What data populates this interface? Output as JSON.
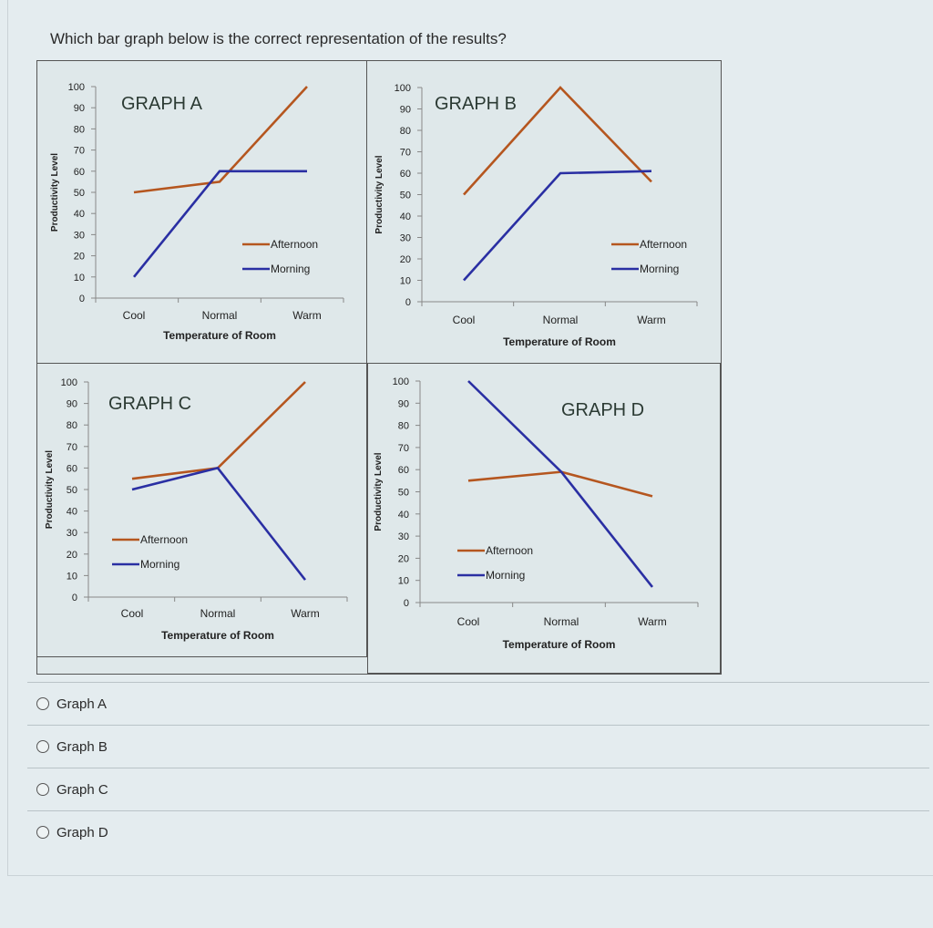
{
  "question": "Which bar graph below is the correct representation of the results?",
  "options": [
    {
      "label": "Graph A"
    },
    {
      "label": "Graph B"
    },
    {
      "label": "Graph C"
    },
    {
      "label": "Graph D"
    }
  ],
  "colors": {
    "afternoon": "#b5561f",
    "morning": "#2a2fa3"
  },
  "chart_data": [
    {
      "type": "line",
      "title": "GRAPH A",
      "categories": [
        "Cool",
        "Normal",
        "Warm"
      ],
      "series": [
        {
          "name": "Afternoon",
          "values": [
            50,
            55,
            100
          ]
        },
        {
          "name": "Morning",
          "values": [
            10,
            60,
            60
          ]
        }
      ],
      "xlabel": "Temperature of Room",
      "ylabel": "Productivity Level",
      "yticks": [
        0,
        10,
        20,
        30,
        40,
        50,
        60,
        70,
        80,
        90,
        100
      ],
      "ylim": [
        0,
        100
      ],
      "grid": false,
      "legend_position": "right"
    },
    {
      "type": "line",
      "title": "GRAPH B",
      "categories": [
        "Cool",
        "Normal",
        "Warm"
      ],
      "series": [
        {
          "name": "Afternoon",
          "values": [
            50,
            100,
            56
          ]
        },
        {
          "name": "Morning",
          "values": [
            10,
            60,
            61
          ]
        }
      ],
      "xlabel": "Temperature of Room",
      "ylabel": "Productivity Level",
      "yticks": [
        0,
        10,
        20,
        30,
        40,
        50,
        60,
        70,
        80,
        90,
        100
      ],
      "ylim": [
        0,
        100
      ],
      "grid": false,
      "legend_position": "right"
    },
    {
      "type": "line",
      "title": "GRAPH C",
      "categories": [
        "Cool",
        "Normal",
        "Warm"
      ],
      "series": [
        {
          "name": "Afternoon",
          "values": [
            55,
            60,
            100
          ]
        },
        {
          "name": "Morning",
          "values": [
            50,
            60,
            8
          ]
        }
      ],
      "xlabel": "Temperature of Room",
      "ylabel": "Productivity Level",
      "yticks": [
        0,
        10,
        20,
        30,
        40,
        50,
        60,
        70,
        80,
        90,
        100
      ],
      "ylim": [
        0,
        100
      ],
      "grid": false,
      "legend_position": "left"
    },
    {
      "type": "line",
      "title": "GRAPH D",
      "categories": [
        "Cool",
        "Normal",
        "Warm"
      ],
      "series": [
        {
          "name": "Afternoon",
          "values": [
            55,
            59,
            48
          ]
        },
        {
          "name": "Morning",
          "values": [
            100,
            59,
            7
          ]
        }
      ],
      "xlabel": "Temperature of Room",
      "ylabel": "Productivity Level",
      "yticks": [
        0,
        10,
        20,
        30,
        40,
        50,
        60,
        70,
        80,
        90,
        100
      ],
      "ylim": [
        0,
        100
      ],
      "grid": false,
      "legend_position": "left"
    }
  ]
}
